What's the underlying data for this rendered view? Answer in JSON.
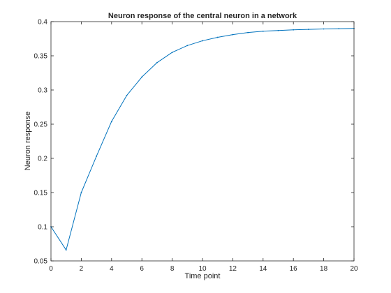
{
  "chart_data": {
    "type": "line",
    "title": "Neuron response of the central neuron in a network",
    "xlabel": "Time point",
    "ylabel": "Neuron response",
    "xlim": [
      0,
      20
    ],
    "ylim": [
      0.05,
      0.4
    ],
    "xticks": [
      0,
      2,
      4,
      6,
      8,
      10,
      12,
      14,
      16,
      18,
      20
    ],
    "xtick_labels": [
      "0",
      "2",
      "4",
      "6",
      "8",
      "10",
      "12",
      "14",
      "16",
      "18",
      "20"
    ],
    "yticks": [
      0.05,
      0.1,
      0.15,
      0.2,
      0.25,
      0.3,
      0.35,
      0.4
    ],
    "ytick_labels": [
      "0.05",
      "0.1",
      "0.15",
      "0.2",
      "0.25",
      "0.3",
      "0.35",
      "0.4"
    ],
    "grid": false,
    "series": [
      {
        "color": "#0072bd",
        "x": [
          0,
          1,
          2,
          3,
          4,
          5,
          6,
          7,
          8,
          9,
          10,
          11,
          12,
          13,
          14,
          15,
          16,
          17,
          18,
          19,
          20
        ],
        "y": [
          0.1,
          0.066,
          0.15,
          0.203,
          0.254,
          0.292,
          0.319,
          0.34,
          0.355,
          0.365,
          0.372,
          0.377,
          0.381,
          0.384,
          0.386,
          0.387,
          0.388,
          0.3887,
          0.3893,
          0.3897,
          0.39
        ]
      }
    ]
  }
}
